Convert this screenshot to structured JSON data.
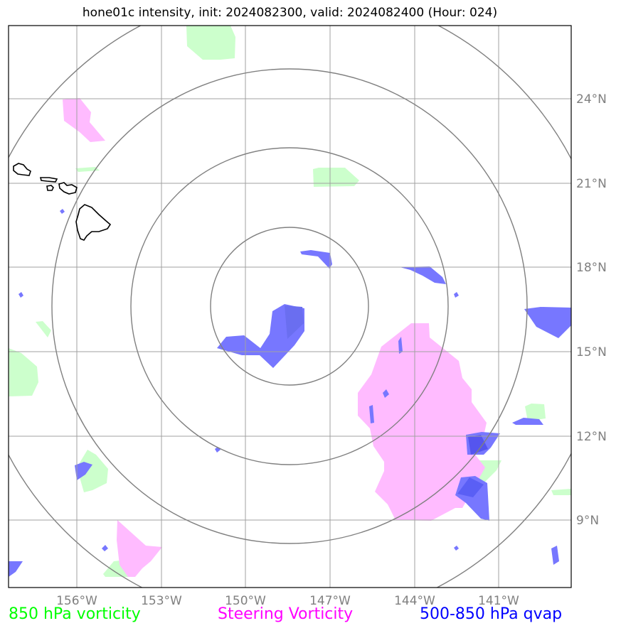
{
  "title": "hone01c intensity, init: 2024082300, valid: 2024082400 (Hour: 024)",
  "longitude_labels": [
    "156°W",
    "153°W",
    "150°W",
    "147°W",
    "144°W",
    "141°W"
  ],
  "latitude_labels": [
    "24°N",
    "21°N",
    "18°N",
    "15°N",
    "12°N",
    "9°N"
  ],
  "legend": {
    "vorticity_850": {
      "label": "850 hPa vorticity",
      "color": "#00ff00"
    },
    "steering_vorticity": {
      "label": "Steering Vorticity",
      "color": "#ff00ff"
    },
    "qvap_500_850": {
      "label": "500-850 hPa qvap",
      "color": "#0000ff"
    }
  },
  "colors": {
    "green_fill": "#ccffcc",
    "magenta_fill": "#ffbbff",
    "blue_fill": "#7777ff",
    "grid": "#a0a0a0",
    "rings": "#808080",
    "tick_label": "#808080"
  }
}
